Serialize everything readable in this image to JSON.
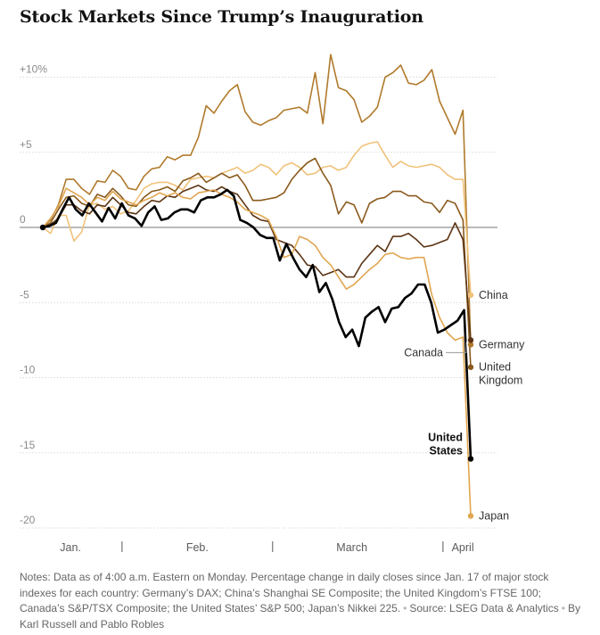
{
  "title": "Stock Markets Since Trump’s Inauguration",
  "notes": {
    "main": "Notes: Data as of 4:00 a.m. Eastern on Monday. Percentage change in daily closes since Jan. 17 of major stock indexes for each country: Germany’s DAX; China’s Shanghai SE Composite; the United Kingdom’s FTSE 100; Canada’s S&P/TSX Composite; the United States’ S&P 500; Japan’s Nikkei 225.",
    "source": "Source: LSEG Data & Analytics",
    "byline": "By Karl Russell and Pablo Robles"
  },
  "chart_data": {
    "type": "line",
    "title": "Stock Markets Since Trump’s Inauguration",
    "x_unit": "trading day since Jan. 17",
    "xlim": [
      0,
      54
    ],
    "ylim": [
      -20,
      10
    ],
    "y_ticks": [
      {
        "value": 10,
        "label": "+10%"
      },
      {
        "value": 5,
        "label": "+5"
      },
      {
        "value": 0,
        "label": "0"
      },
      {
        "value": -5,
        "label": "-5"
      },
      {
        "value": -10,
        "label": "-10"
      },
      {
        "value": -15,
        "label": "-15"
      },
      {
        "value": -20,
        "label": "-20"
      }
    ],
    "x_labels": [
      {
        "label": "Jan.",
        "at": 3.5
      },
      {
        "label": "Feb.",
        "at": 19.5
      },
      {
        "label": "March",
        "at": 39
      },
      {
        "label": "April",
        "at": 53
      }
    ],
    "month_separators": [
      10,
      29,
      50.5
    ],
    "zero_line": true,
    "series": [
      {
        "name": "Germany",
        "color": "#b07a2c",
        "end_label": [
          "Germany"
        ],
        "values": [
          0,
          0.5,
          1.5,
          3.2,
          3.2,
          2.6,
          2.2,
          3.1,
          3.0,
          3.8,
          3.4,
          2.6,
          2.5,
          3.4,
          3.9,
          4.0,
          4.7,
          4.5,
          4.8,
          4.8,
          6.0,
          8.1,
          7.6,
          8.4,
          9.1,
          9.5,
          7.7,
          7.0,
          6.8,
          7.1,
          7.3,
          7.8,
          7.9,
          8.0,
          7.6,
          10.3,
          6.9,
          11.5,
          9.3,
          9.1,
          8.5,
          7.0,
          7.4,
          8.0,
          10.0,
          10.3,
          10.8,
          9.6,
          9.5,
          9.8,
          10.5,
          8.4,
          7.3,
          6.2,
          7.8,
          -7.8
        ]
      },
      {
        "name": "China",
        "color": "#f0c27a",
        "end_label": [
          "China"
        ],
        "values": [
          0,
          -0.4,
          0.8,
          0.8,
          -0.9,
          -0.3,
          1.5,
          1.6,
          1.2,
          1.4,
          0.9,
          1.1,
          1.8,
          2.6,
          2.9,
          3.0,
          3.0,
          2.8,
          2.5,
          3.2,
          3.3,
          3.4,
          3.3,
          3.6,
          3.8,
          4.0,
          3.6,
          3.8,
          4.2,
          4.0,
          3.5,
          4.1,
          4.3,
          4.0,
          3.5,
          3.6,
          4.0,
          4.1,
          3.8,
          4.0,
          4.8,
          5.4,
          5.6,
          5.7,
          4.8,
          4.0,
          4.4,
          4.1,
          4.0,
          4.1,
          4.2,
          4.0,
          3.5,
          3.2,
          3.2,
          -4.5
        ]
      },
      {
        "name": "United Kingdom",
        "color": "#8a5a1c",
        "end_label": [
          "United",
          "Kingdom"
        ],
        "values": [
          0,
          0.3,
          1.2,
          2.0,
          2.1,
          1.6,
          1.4,
          2.2,
          2.0,
          2.6,
          2.1,
          1.5,
          1.4,
          2.0,
          2.4,
          2.5,
          2.7,
          2.4,
          3.1,
          3.3,
          3.6,
          3.0,
          3.3,
          3.6,
          3.3,
          3.5,
          2.8,
          1.8,
          1.8,
          1.9,
          2.0,
          2.3,
          3.2,
          3.8,
          4.3,
          4.6,
          3.6,
          2.8,
          0.9,
          1.7,
          1.5,
          0.3,
          1.6,
          1.9,
          2.0,
          2.4,
          2.4,
          2.1,
          2.1,
          1.7,
          1.6,
          1.0,
          1.8,
          1.6,
          0.5,
          -9.3
        ]
      },
      {
        "name": "Canada",
        "color": "#5c3414",
        "end_label": [
          "Canada"
        ],
        "values": [
          0,
          0.2,
          0.6,
          1.5,
          1.5,
          1.1,
          0.9,
          1.5,
          1.4,
          2.0,
          1.5,
          1.0,
          0.9,
          1.4,
          1.8,
          1.7,
          2.1,
          2.0,
          2.4,
          2.6,
          2.8,
          2.5,
          2.4,
          2.7,
          2.4,
          2.2,
          1.5,
          0.8,
          0.5,
          0.4,
          -0.8,
          -1.0,
          -1.2,
          -1.8,
          -2.5,
          -2.6,
          -3.2,
          -3.0,
          -2.8,
          -3.3,
          -3.3,
          -2.4,
          -1.8,
          -1.2,
          -1.6,
          -0.6,
          -0.6,
          -0.4,
          -0.8,
          -1.3,
          -1.2,
          -1.0,
          -0.8,
          0.3,
          -0.8,
          -7.5
        ]
      },
      {
        "name": "Japan",
        "color": "#e0a650",
        "end_label": [
          "Japan"
        ],
        "values": [
          0,
          0.6,
          1.4,
          2.6,
          2.3,
          2.0,
          1.5,
          2.0,
          1.8,
          2.4,
          1.9,
          1.7,
          1.5,
          1.8,
          2.0,
          2.3,
          2.1,
          2.3,
          2.0,
          1.9,
          2.3,
          2.4,
          2.5,
          2.2,
          2.0,
          1.7,
          1.2,
          1.0,
          0.8,
          0.5,
          -0.6,
          -2.0,
          -1.8,
          -0.6,
          -0.8,
          -1.2,
          -2.0,
          -2.5,
          -3.3,
          -4.1,
          -3.8,
          -3.3,
          -2.8,
          -2.4,
          -1.8,
          -1.7,
          -2.0,
          -2.1,
          -2.0,
          -2.0,
          -4.5,
          -6.0,
          -7.0,
          -7.5,
          -7.3,
          -19.2
        ]
      },
      {
        "name": "United States",
        "color": "#000000",
        "end_label": [
          "United",
          "States"
        ],
        "values": [
          0,
          0.1,
          0.3,
          1.2,
          2.0,
          1.2,
          0.8,
          1.6,
          1.0,
          0.4,
          1.3,
          0.6,
          1.6,
          0.8,
          0.6,
          0.1,
          1.0,
          1.4,
          0.5,
          0.6,
          1.0,
          1.2,
          1.2,
          1.0,
          1.8,
          2.0,
          2.0,
          2.2,
          2.5,
          2.1,
          0.5,
          0.3,
          0.0,
          -0.5,
          -0.7,
          -0.7,
          -2.2,
          -1.1,
          -2.0,
          -2.8,
          -3.3,
          -2.5,
          -4.3,
          -3.7,
          -4.8,
          -6.3,
          -7.3,
          -6.8,
          -7.9,
          -6.0,
          -5.6,
          -5.3,
          -6.3,
          -5.4,
          -5.3,
          -4.7,
          -4.4,
          -3.8,
          -3.8,
          -5.0,
          -7.0,
          -6.8,
          -6.5,
          -6.2,
          -5.5,
          -15.4
        ]
      }
    ]
  }
}
